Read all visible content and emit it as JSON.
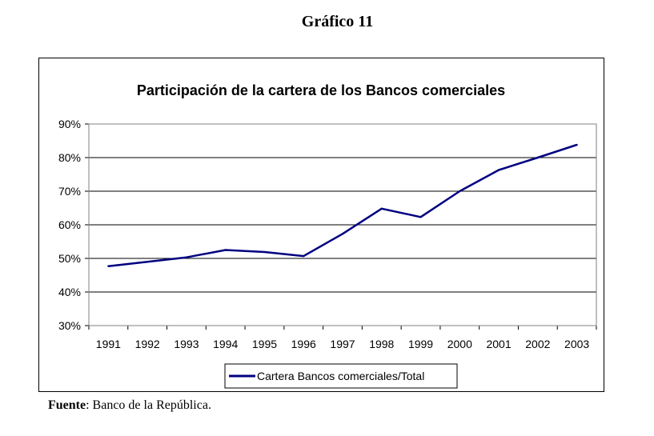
{
  "heading": "Gráfico 11",
  "source": {
    "label": "Fuente",
    "text": ": Banco de la República."
  },
  "chart_data": {
    "type": "line",
    "title": "Participación de la cartera de los Bancos comerciales",
    "xlabel": "",
    "ylabel": "",
    "categories": [
      "1991",
      "1992",
      "1993",
      "1994",
      "1995",
      "1996",
      "1997",
      "1998",
      "1999",
      "2000",
      "2001",
      "2002",
      "2003"
    ],
    "y_ticks": [
      "30%",
      "40%",
      "50%",
      "60%",
      "70%",
      "80%",
      "90%"
    ],
    "ylim": [
      30,
      90
    ],
    "y_unit": "%",
    "grid": true,
    "legend_position": "bottom",
    "series": [
      {
        "name": "Cartera Bancos comerciales/Total",
        "color": "#000080",
        "values": [
          47.7,
          49.0,
          50.3,
          52.5,
          51.9,
          50.7,
          57.3,
          64.8,
          62.3,
          70.0,
          76.3,
          80.0,
          83.8
        ]
      }
    ]
  }
}
